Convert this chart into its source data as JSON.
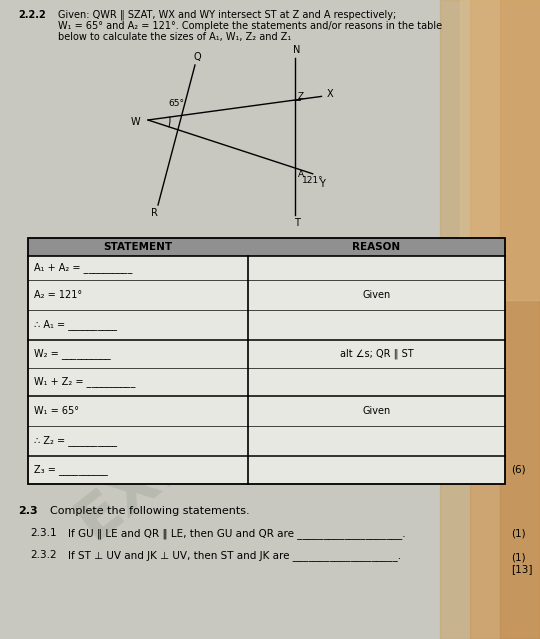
{
  "bg_color": "#b8b8b0",
  "paper_color": "#c8c8c0",
  "title_num": "2.2.2",
  "title_text": "Given: QWR ‖ SZAT, WX and WY intersect ST at Z and A respectively;",
  "title_text2": "W₁ = 65° and A₂ = 121°. Complete the statements and/or reasons in the table",
  "title_text3": "below to calculate the sizes of A₁, W₁, Z₂ and Z₁",
  "table_header_statement": "STATEMENT",
  "table_header_reason": "REASON",
  "rows": [
    {
      "statement": "A₁ + A₂ = __________",
      "reason": "",
      "group_end": false
    },
    {
      "statement": "A₂ = 121°",
      "reason": "Given",
      "group_end": false
    },
    {
      "statement": "∴ A₁ = __________",
      "reason": "",
      "group_end": true
    },
    {
      "statement": "W₂ = __________",
      "reason": "alt ∠s; QR ‖ ST",
      "group_end": false
    },
    {
      "statement": "W₁ + Z₂ = __________",
      "reason": "",
      "group_end": true
    },
    {
      "statement": "W₁ = 65°",
      "reason": "Given",
      "group_end": false
    },
    {
      "statement": "∴ Z₂ = __________",
      "reason": "",
      "group_end": true
    },
    {
      "statement": "Z₃ = __________",
      "reason": "",
      "group_end": true
    }
  ],
  "mark": "(6)",
  "section_23_num": "2.3",
  "section_23_text": "Complete the following statements.",
  "section_231_num": "2.3.1",
  "section_231_text": "If GU ‖ LE and QR ‖ LE, then GU and QR are",
  "section_231_mark": "(1)",
  "section_232_num": "2.3.2",
  "section_232_text": "If ST ⊥ UV and JK ⊥ UV, then ST and JK are",
  "section_232_mark1": "(1)",
  "section_232_mark2": "[13]"
}
